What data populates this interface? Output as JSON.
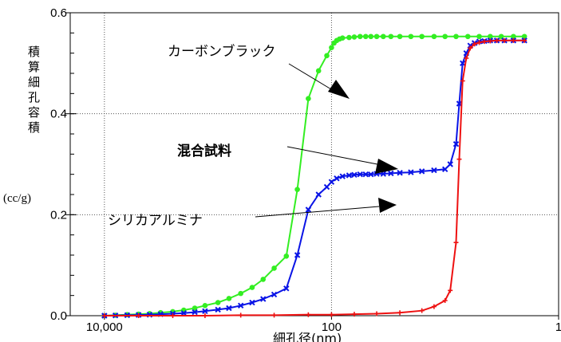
{
  "chart_data": {
    "type": "line",
    "xlabel": "細孔径(nm)",
    "ylabel": "積算細孔容積",
    "ylabel_unit": "(cc/g)",
    "x_scale": "log-reversed",
    "xlim": [
      20000,
      1
    ],
    "ylim": [
      0,
      0.6
    ],
    "x_ticks": [
      {
        "value": 10000,
        "label": "10,000"
      },
      {
        "value": 100,
        "label": "100"
      },
      {
        "value": 1,
        "label": "1"
      }
    ],
    "y_ticks": [
      {
        "value": 0.0,
        "label": "0.0"
      },
      {
        "value": 0.2,
        "label": "0.2"
      },
      {
        "value": 0.4,
        "label": "0.4"
      },
      {
        "value": 0.6,
        "label": "0.6"
      }
    ],
    "grid": true,
    "series": [
      {
        "name": "カーボンブラック",
        "color": "#33ee22",
        "marker": "circle",
        "x": [
          10000,
          8000,
          6300,
          5000,
          4000,
          3200,
          2500,
          2000,
          1600,
          1300,
          1000,
          800,
          630,
          500,
          400,
          320,
          250,
          200,
          160,
          130,
          110,
          100,
          95,
          90,
          85,
          80,
          70,
          63,
          56,
          50,
          45,
          40,
          35,
          30,
          25,
          20,
          16,
          12.5,
          10,
          8,
          6.3,
          5,
          4,
          3.2,
          2.5,
          2
        ],
        "y": [
          0.0,
          0.001,
          0.002,
          0.003,
          0.004,
          0.006,
          0.008,
          0.011,
          0.015,
          0.02,
          0.026,
          0.034,
          0.044,
          0.056,
          0.072,
          0.094,
          0.118,
          0.25,
          0.43,
          0.485,
          0.515,
          0.531,
          0.54,
          0.545,
          0.548,
          0.55,
          0.551,
          0.552,
          0.553,
          0.553,
          0.553,
          0.553,
          0.553,
          0.553,
          0.553,
          0.553,
          0.553,
          0.553,
          0.553,
          0.553,
          0.553,
          0.553,
          0.553,
          0.553,
          0.553,
          0.553
        ]
      },
      {
        "name": "混合試料",
        "color": "#0a14e6",
        "marker": "x",
        "x": [
          10000,
          8000,
          6300,
          5000,
          4000,
          3200,
          2500,
          2000,
          1600,
          1300,
          1000,
          800,
          630,
          500,
          400,
          320,
          250,
          200,
          160,
          130,
          110,
          100,
          90,
          80,
          70,
          63,
          56,
          50,
          45,
          40,
          35,
          30,
          25,
          20,
          16,
          12.5,
          10,
          9,
          8,
          7.5,
          7,
          6.5,
          6,
          5.5,
          5,
          4.5,
          4,
          3.5,
          3,
          2.5,
          2
        ],
        "y": [
          0.0,
          0.0005,
          0.001,
          0.0015,
          0.002,
          0.003,
          0.004,
          0.005,
          0.007,
          0.009,
          0.012,
          0.015,
          0.02,
          0.026,
          0.033,
          0.042,
          0.054,
          0.12,
          0.21,
          0.24,
          0.255,
          0.265,
          0.272,
          0.276,
          0.278,
          0.279,
          0.28,
          0.28,
          0.28,
          0.281,
          0.281,
          0.282,
          0.283,
          0.284,
          0.286,
          0.288,
          0.29,
          0.3,
          0.34,
          0.42,
          0.5,
          0.52,
          0.535,
          0.54,
          0.543,
          0.544,
          0.545,
          0.545,
          0.545,
          0.545,
          0.545
        ]
      },
      {
        "name": "シリカアルミナ",
        "color": "#ee1111",
        "marker": "plus",
        "x": [
          10000,
          5000,
          2500,
          1300,
          630,
          320,
          160,
          100,
          63,
          40,
          25,
          16,
          12.5,
          10,
          9,
          8,
          7.5,
          7,
          6.5,
          6,
          5.5,
          5,
          4.5,
          4,
          3.5,
          3,
          2.5,
          2
        ],
        "y": [
          0.0,
          0.0,
          0.0,
          0.0,
          0.001,
          0.001,
          0.002,
          0.002,
          0.003,
          0.004,
          0.006,
          0.01,
          0.018,
          0.03,
          0.05,
          0.145,
          0.31,
          0.465,
          0.51,
          0.53,
          0.538,
          0.541,
          0.543,
          0.544,
          0.545,
          0.545,
          0.545,
          0.545
        ]
      }
    ],
    "annotations": [
      {
        "text": "カーボンブラック",
        "bold": false,
        "target_series": 0
      },
      {
        "text": "混合試料",
        "bold": true,
        "target_series": 1
      },
      {
        "text": "シリカアルミナ",
        "bold": false,
        "target_series": 2
      }
    ]
  }
}
